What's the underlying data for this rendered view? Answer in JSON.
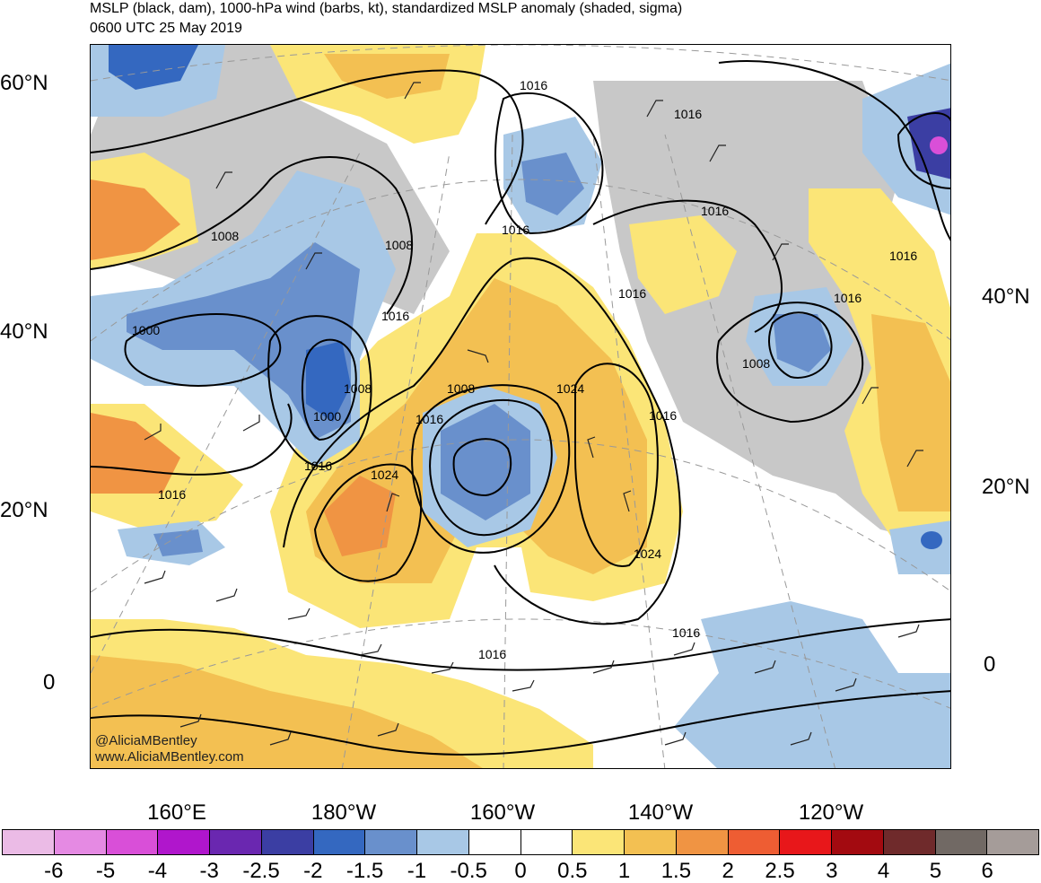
{
  "title": {
    "line1": "MSLP (black, dam), 1000-hPa wind (barbs, kt), standardized MSLP anomaly (shaded, sigma)",
    "line2": "0600 UTC 25 May 2019"
  },
  "map": {
    "projection": "polar stereographic",
    "lat_labels_left": [
      "60°N",
      "40°N",
      "20°N",
      "0"
    ],
    "lat_labels_right": [
      "40°N",
      "20°N",
      "0"
    ],
    "lon_labels": [
      "160°E",
      "180°W",
      "160°W",
      "140°W",
      "120°W"
    ],
    "isobar_labels": [
      {
        "text": "1016"
      },
      {
        "text": "1016"
      },
      {
        "text": "1016"
      },
      {
        "text": "1016"
      },
      {
        "text": "1016"
      },
      {
        "text": "1016"
      },
      {
        "text": "1016"
      },
      {
        "text": "1016"
      },
      {
        "text": "1016"
      },
      {
        "text": "1016"
      },
      {
        "text": "1016"
      },
      {
        "text": "1016"
      },
      {
        "text": "1008"
      },
      {
        "text": "1008"
      },
      {
        "text": "1008"
      },
      {
        "text": "1008"
      },
      {
        "text": "1008"
      },
      {
        "text": "1000"
      },
      {
        "text": "1000"
      },
      {
        "text": "1024"
      },
      {
        "text": "1024"
      },
      {
        "text": "1024"
      }
    ],
    "credits": [
      "@AliciaMBentley",
      "www.AliciaMBentley.com"
    ]
  },
  "colorbar": {
    "title": "",
    "colors": [
      "#ebbbe6",
      "#e58ae3",
      "#d94fd8",
      "#b016cc",
      "#6a27b0",
      "#3b3ea3",
      "#3468c0",
      "#6990cc",
      "#a8c8e6",
      "#ffffff",
      "#ffffff",
      "#fbe577",
      "#f3c052",
      "#f09443",
      "#ee5d33",
      "#e8171a",
      "#a30a10",
      "#6f2a2b",
      "#716964",
      "#a59c99"
    ],
    "tick_labels": [
      "-6",
      "-5",
      "-4",
      "-3",
      "-2.5",
      "-2",
      "-1.5",
      "-1",
      "-0.5",
      "0",
      "0.5",
      "1",
      "1.5",
      "2",
      "2.5",
      "3",
      "4",
      "5",
      "6"
    ]
  }
}
